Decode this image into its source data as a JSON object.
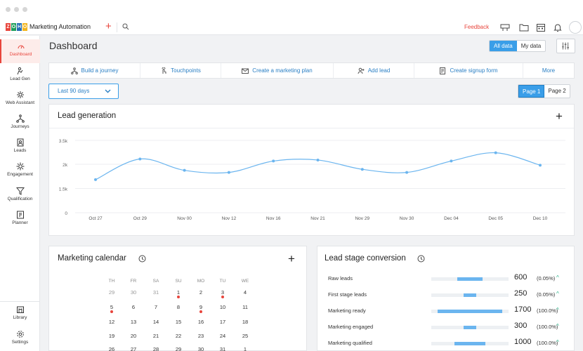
{
  "app": {
    "name": "Marketing Automation",
    "logo_letters": [
      "Z",
      "O",
      "H",
      "O"
    ],
    "logo_colors": [
      "#e8453c",
      "#1e9e5a",
      "#226db4",
      "#f2b51e"
    ],
    "feedback_label": "Feedback"
  },
  "sidebar": {
    "items": [
      {
        "label": "Dashboard",
        "icon": "dashboard-icon"
      },
      {
        "label": "Lead Gen",
        "icon": "lead-gen-icon"
      },
      {
        "label": "Web Assistant",
        "icon": "web-assistant-icon"
      },
      {
        "label": "Journeys",
        "icon": "journeys-icon"
      },
      {
        "label": "Leads",
        "icon": "leads-icon"
      },
      {
        "label": "Engagement",
        "icon": "engagement-icon"
      },
      {
        "label": "Qualification",
        "icon": "qualification-icon"
      },
      {
        "label": "Planner",
        "icon": "planner-icon"
      }
    ],
    "bottom": [
      {
        "label": "Library",
        "icon": "library-icon"
      },
      {
        "label": "Settings",
        "icon": "settings-icon"
      }
    ]
  },
  "header": {
    "title": "Dashboard",
    "toggle": [
      "All data",
      "My data"
    ],
    "toggle_selected": "All data"
  },
  "actions": [
    {
      "label": "Build a journey",
      "icon": "journey-icon"
    },
    {
      "label": "Touchpoints",
      "icon": "touchpoint-icon"
    },
    {
      "label": "Create a marketing plan",
      "icon": "envelope-icon"
    },
    {
      "label": "Add lead",
      "icon": "add-lead-icon"
    },
    {
      "label": "Create signup form",
      "icon": "form-icon"
    },
    {
      "label": "More",
      "icon": ""
    }
  ],
  "range": {
    "selected": "Last 90 days"
  },
  "pager": {
    "pages": [
      "Page 1",
      "Page 2"
    ],
    "selected": "Page 1"
  },
  "lead_generation": {
    "title": "Lead generation"
  },
  "chart_data": {
    "type": "line",
    "title": "Lead generation",
    "xlabel": "",
    "ylabel": "",
    "categories": [
      "Oct 27",
      "Oct 29",
      "Nov 00",
      "Nov 12",
      "Nov 16",
      "Nov 21",
      "Nov 29",
      "Nov 30",
      "Dec 04",
      "Dec 05",
      "Dec 10"
    ],
    "y_ticks": [
      "0",
      "1.5k",
      "2k",
      "3.5k"
    ],
    "ylim": [
      0,
      3.5
    ],
    "values": [
      1.6,
      2.6,
      2.05,
      1.95,
      2.5,
      2.55,
      2.1,
      1.95,
      2.5,
      2.9,
      2.3
    ],
    "grid": true,
    "color": "#6bb5ef"
  },
  "calendar": {
    "title": "Marketing calendar",
    "weekdays": [
      "TH",
      "FR",
      "SA",
      "SU",
      "MO",
      "TU",
      "WE"
    ],
    "weeks": [
      [
        "29",
        "30",
        "31",
        "1",
        "2",
        "3",
        "4"
      ],
      [
        "5",
        "6",
        "7",
        "8",
        "9",
        "10",
        "11"
      ],
      [
        "12",
        "13",
        "14",
        "15",
        "16",
        "17",
        "18"
      ],
      [
        "19",
        "20",
        "21",
        "22",
        "23",
        "24",
        "25"
      ],
      [
        "26",
        "27",
        "28",
        "29",
        "30",
        "31",
        "1"
      ]
    ],
    "dot_color": "#e8453c"
  },
  "lead_stage": {
    "title": "Lead stage conversion",
    "rows": [
      {
        "name": "Raw leads",
        "value": "600",
        "pct": "(0.05%)",
        "bar": 0.32
      },
      {
        "name": "First stage leads",
        "value": "250",
        "pct": "(0.05%)",
        "bar": 0.16
      },
      {
        "name": "Marketing ready",
        "value": "1700",
        "pct": "(100.0%)",
        "bar": 0.84
      },
      {
        "name": "Marketing engaged",
        "value": "300",
        "pct": "(100.0%)",
        "bar": 0.17
      },
      {
        "name": "Marketing qualified",
        "value": "1000",
        "pct": "(100.0%)",
        "bar": 0.4
      }
    ]
  }
}
